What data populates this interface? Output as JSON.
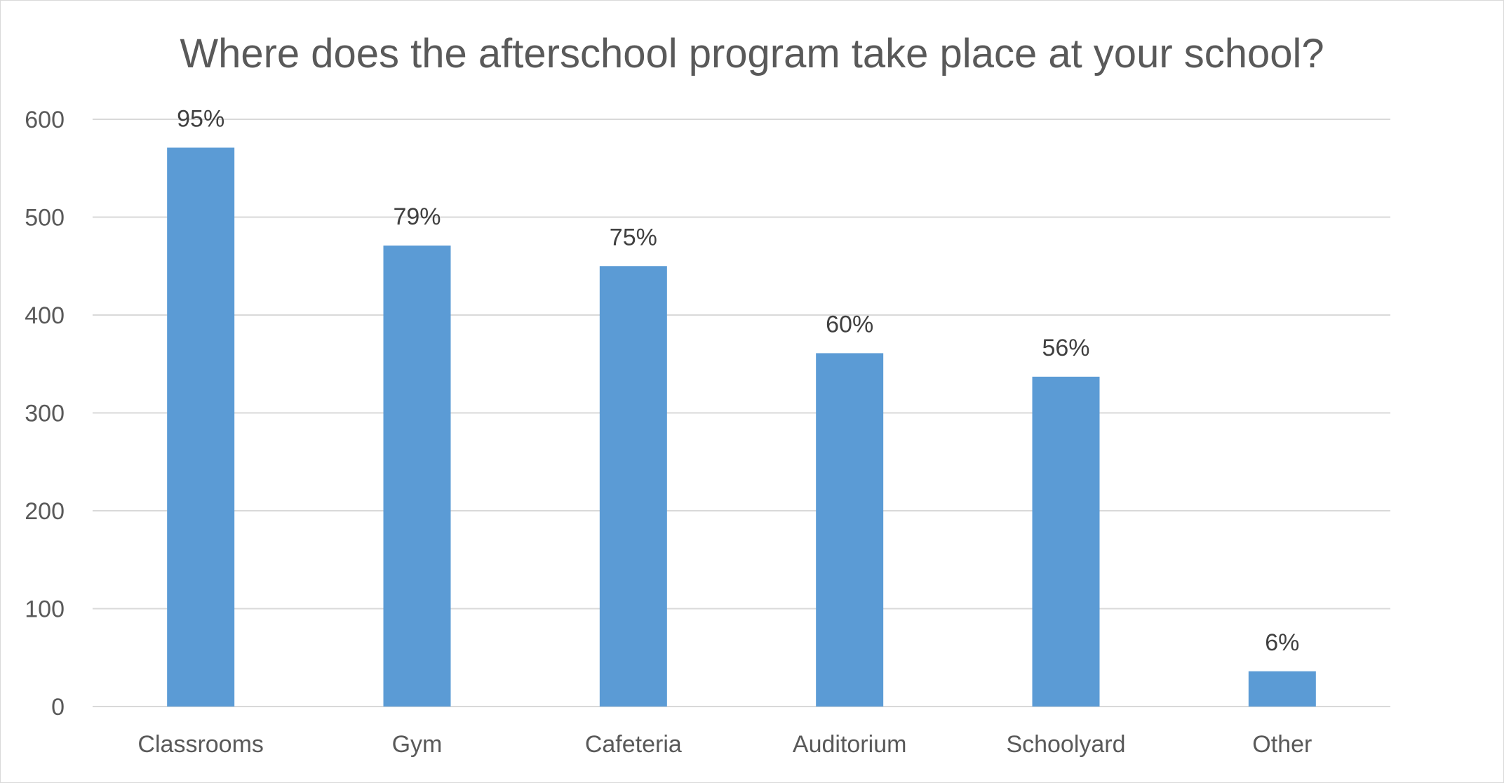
{
  "chart_data": {
    "type": "bar",
    "title": "Where does the afterschool program take place at your school?",
    "categories": [
      "Classrooms",
      "Gym",
      "Cafeteria",
      "Auditorium",
      "Schoolyard",
      "Other"
    ],
    "values": [
      571,
      471,
      450,
      361,
      337,
      36
    ],
    "data_labels": [
      "95%",
      "79%",
      "75%",
      "60%",
      "56%",
      "6%"
    ],
    "ylim": [
      0,
      600
    ],
    "yticks": [
      0,
      100,
      200,
      300,
      400,
      500,
      600
    ],
    "xlabel": "",
    "ylabel": "",
    "grid": true,
    "legend": "none",
    "bar_color": "#5b9bd5"
  }
}
